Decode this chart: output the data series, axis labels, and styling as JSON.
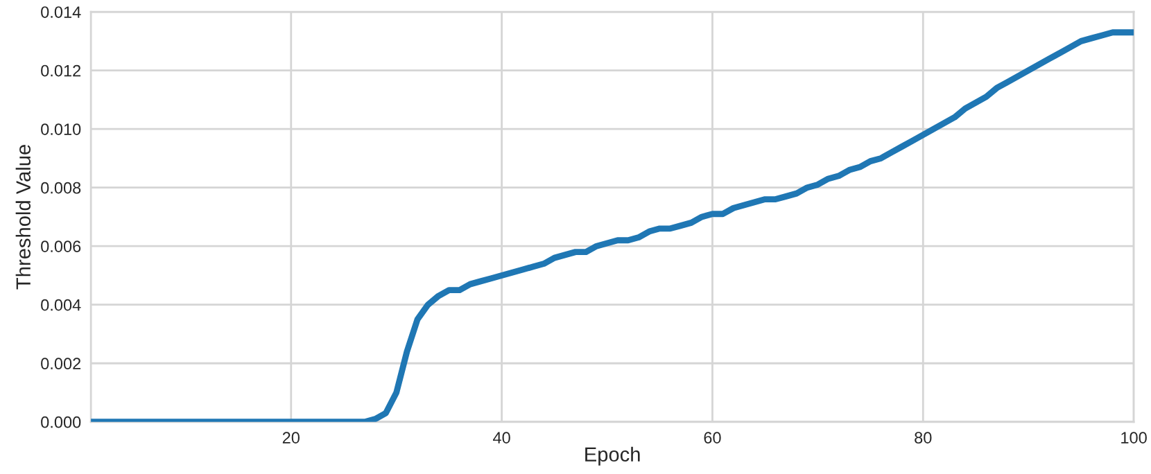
{
  "chart_data": {
    "type": "line",
    "xlabel": "Epoch",
    "ylabel": "Threshold Value",
    "x": [
      1,
      27,
      28,
      29,
      30,
      31,
      32,
      33,
      34,
      35,
      36,
      37,
      38,
      39,
      40,
      41,
      42,
      43,
      44,
      45,
      46,
      47,
      48,
      49,
      50,
      51,
      52,
      53,
      54,
      55,
      56,
      57,
      58,
      59,
      60,
      61,
      62,
      63,
      64,
      65,
      66,
      67,
      68,
      69,
      70,
      71,
      72,
      73,
      74,
      75,
      76,
      77,
      78,
      79,
      80,
      81,
      82,
      83,
      84,
      85,
      86,
      87,
      88,
      89,
      90,
      91,
      92,
      93,
      94,
      95,
      96,
      97,
      98,
      99,
      100
    ],
    "series": [
      {
        "color": "#1f77b4",
        "values": [
          0,
          0,
          0.0001,
          0.0003,
          0.001,
          0.0024,
          0.0035,
          0.004,
          0.0043,
          0.0045,
          0.0045,
          0.0047,
          0.0048,
          0.0049,
          0.005,
          0.0051,
          0.0052,
          0.0053,
          0.0054,
          0.0056,
          0.0057,
          0.0058,
          0.0058,
          0.006,
          0.0061,
          0.0062,
          0.0062,
          0.0063,
          0.0065,
          0.0066,
          0.0066,
          0.0067,
          0.0068,
          0.007,
          0.0071,
          0.0071,
          0.0073,
          0.0074,
          0.0075,
          0.0076,
          0.0076,
          0.0077,
          0.0078,
          0.008,
          0.0081,
          0.0083,
          0.0084,
          0.0086,
          0.0087,
          0.0089,
          0.009,
          0.0092,
          0.0094,
          0.0096,
          0.0098,
          0.01,
          0.0102,
          0.0104,
          0.0107,
          0.0109,
          0.0111,
          0.0114,
          0.0116,
          0.0118,
          0.012,
          0.0122,
          0.0124,
          0.0126,
          0.0128,
          0.013,
          0.0131,
          0.0132,
          0.0133,
          0.0133,
          0.0133
        ]
      }
    ],
    "xlim": [
      1,
      100
    ],
    "xticks": [
      20,
      40,
      60,
      80,
      100
    ],
    "ylim": [
      0,
      0.014
    ],
    "yticks": [
      {
        "value": 0,
        "label": "0.000"
      },
      {
        "value": 0.002,
        "label": "0.002"
      },
      {
        "value": 0.004,
        "label": "0.004"
      },
      {
        "value": 0.006,
        "label": "0.006"
      },
      {
        "value": 0.008,
        "label": "0.008"
      },
      {
        "value": 0.01,
        "label": "0.010"
      },
      {
        "value": 0.012,
        "label": "0.012"
      },
      {
        "value": 0.014,
        "label": "0.014"
      }
    ],
    "grid": true,
    "line_style": "solid",
    "marker": "none"
  }
}
